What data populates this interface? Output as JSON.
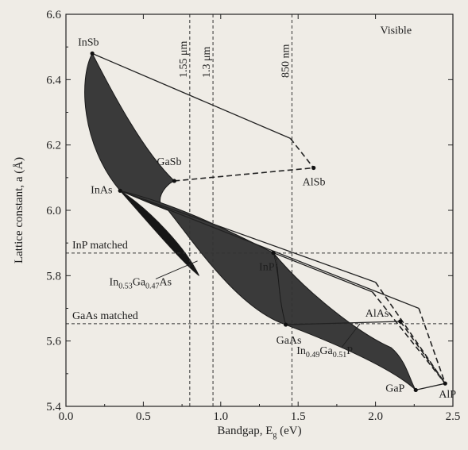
{
  "chart_data": {
    "type": "scatter",
    "xlabel": "Bandgap, E",
    "xlabel_sub": "g",
    "xlabel_unit": " (eV)",
    "ylabel": "Lattice constant, a (Å)",
    "xlim": [
      0.0,
      2.5
    ],
    "ylim": [
      5.4,
      6.6
    ],
    "xticks": [
      "0.0",
      "0.5",
      "1.0",
      "1.5",
      "2.0",
      "2.5"
    ],
    "yticks": [
      "5.4",
      "5.6",
      "5.8",
      "6.0",
      "6.2",
      "6.4",
      "6.6"
    ],
    "xtick_values": [
      0.0,
      0.5,
      1.0,
      1.5,
      2.0,
      2.5
    ],
    "ytick_values": [
      5.4,
      5.6,
      5.8,
      6.0,
      6.2,
      6.4,
      6.6
    ],
    "colors": {
      "region_dark": "#3a3a3a",
      "region_darker": "#161616",
      "line": "#222222"
    },
    "compounds": [
      {
        "id": "insb",
        "label": "InSb",
        "x": 0.17,
        "y": 6.48
      },
      {
        "id": "gasb",
        "label": "GaSb",
        "x": 0.7,
        "y": 6.09
      },
      {
        "id": "alsb",
        "label": "AlSb",
        "x": 1.6,
        "y": 6.13
      },
      {
        "id": "inas",
        "label": "InAs",
        "x": 0.35,
        "y": 6.06
      },
      {
        "id": "inp",
        "label": "InP",
        "x": 1.34,
        "y": 5.87
      },
      {
        "id": "gaas",
        "label": "GaAs",
        "x": 1.42,
        "y": 5.65
      },
      {
        "id": "alas",
        "label": "AlAs",
        "x": 2.16,
        "y": 5.66
      },
      {
        "id": "gap",
        "label": "GaP",
        "x": 2.26,
        "y": 5.45
      },
      {
        "id": "alp",
        "label": "AlP",
        "x": 2.45,
        "y": 5.47
      }
    ],
    "wavelength_lines": [
      {
        "label": "1.55 μm",
        "x": 0.8
      },
      {
        "label": "1.3 μm",
        "x": 0.95
      },
      {
        "label": "850 nm",
        "x": 1.46
      }
    ],
    "matched_lines": [
      {
        "label": "InP matched",
        "y": 5.869
      },
      {
        "label": "GaAs matched",
        "y": 5.653
      }
    ],
    "alloy_labels": [
      {
        "id": "ingaas",
        "base1": "In",
        "sub1": "0.53",
        "base2": "Ga",
        "sub2": "0.47",
        "base3": "As",
        "x": 0.85,
        "y": 5.845
      },
      {
        "id": "ingap",
        "base1": "In",
        "sub1": "0.49",
        "base2": "Ga",
        "sub2": "0.51",
        "base3": "P",
        "x": 1.9,
        "y": 5.653
      }
    ],
    "region_label": "Visible"
  }
}
